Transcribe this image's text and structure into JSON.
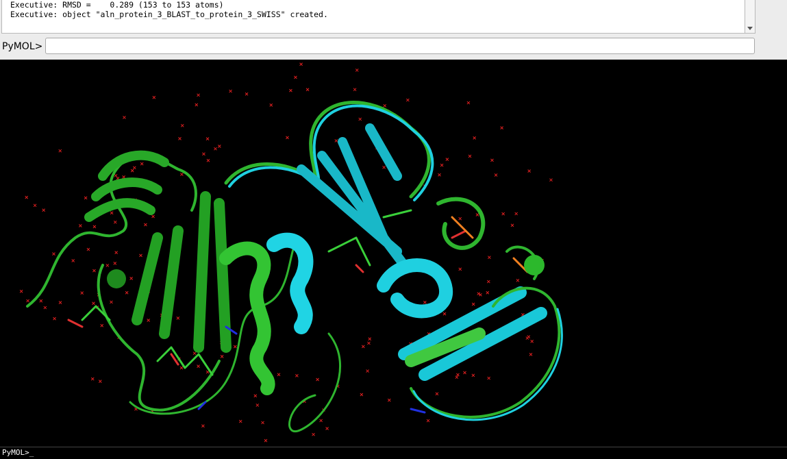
{
  "output": {
    "lines": [
      "Executive: RMSD =    0.289 (153 to 153 atoms)",
      "Executive: object \"aln_protein_3_BLAST_to_protein_3_SWISS\" created."
    ]
  },
  "command": {
    "prompt": "PyMOL>"
  },
  "viewer": {
    "prompt": "PyMOL>_"
  }
}
